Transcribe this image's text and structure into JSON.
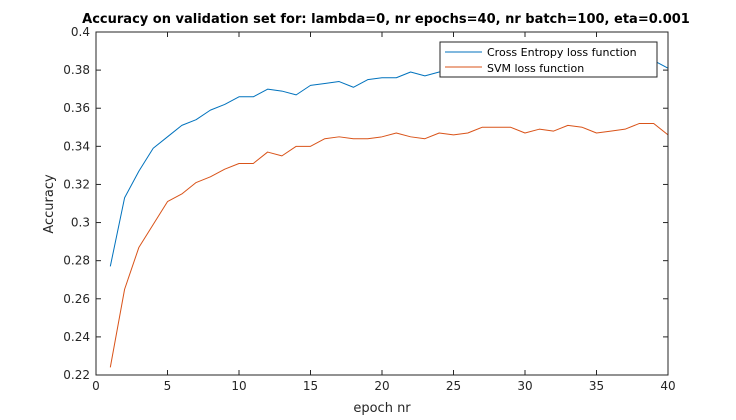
{
  "chart_data": {
    "type": "line",
    "title": "Accuracy on validation set for: lambda=0, nr epochs=40, nr batch=100, eta=0.001",
    "xlabel": "epoch nr",
    "ylabel": "Accuracy",
    "xlim": [
      0,
      40
    ],
    "ylim": [
      0.22,
      0.4
    ],
    "xticks": [
      0,
      5,
      10,
      15,
      20,
      25,
      30,
      35,
      40
    ],
    "yticks": [
      0.22,
      0.24,
      0.26,
      0.28,
      0.3,
      0.32,
      0.34,
      0.36,
      0.38,
      0.4
    ],
    "xtick_labels": [
      "0",
      "5",
      "10",
      "15",
      "20",
      "25",
      "30",
      "35",
      "40"
    ],
    "ytick_labels": [
      "0.22",
      "0.24",
      "0.26",
      "0.28",
      "0.3",
      "0.32",
      "0.34",
      "0.36",
      "0.38",
      "0.4"
    ],
    "grid": false,
    "legend_position": "top-right",
    "x": [
      1,
      2,
      3,
      4,
      5,
      6,
      7,
      8,
      9,
      10,
      11,
      12,
      13,
      14,
      15,
      16,
      17,
      18,
      19,
      20,
      21,
      22,
      23,
      24,
      25,
      26,
      27,
      28,
      29,
      30,
      31,
      32,
      33,
      34,
      35,
      36,
      37,
      38,
      39,
      40
    ],
    "series": [
      {
        "name": "Cross Entropy loss function",
        "color": "#0072BD",
        "values": [
          0.277,
          0.313,
          0.327,
          0.339,
          0.345,
          0.351,
          0.354,
          0.359,
          0.362,
          0.366,
          0.366,
          0.37,
          0.369,
          0.367,
          0.372,
          0.373,
          0.374,
          0.371,
          0.375,
          0.376,
          0.376,
          0.379,
          0.377,
          0.379,
          0.38,
          0.381,
          0.382,
          0.382,
          0.383,
          0.382,
          0.383,
          0.383,
          0.383,
          0.384,
          0.384,
          0.384,
          0.385,
          0.385,
          0.385,
          0.381
        ]
      },
      {
        "name": "SVM loss function",
        "color": "#D95319",
        "values": [
          0.224,
          0.265,
          0.287,
          0.299,
          0.311,
          0.315,
          0.321,
          0.324,
          0.328,
          0.331,
          0.331,
          0.337,
          0.335,
          0.34,
          0.34,
          0.344,
          0.345,
          0.344,
          0.344,
          0.345,
          0.347,
          0.345,
          0.344,
          0.347,
          0.346,
          0.347,
          0.35,
          0.35,
          0.35,
          0.347,
          0.349,
          0.348,
          0.351,
          0.35,
          0.347,
          0.348,
          0.349,
          0.352,
          0.352,
          0.346
        ]
      }
    ]
  }
}
